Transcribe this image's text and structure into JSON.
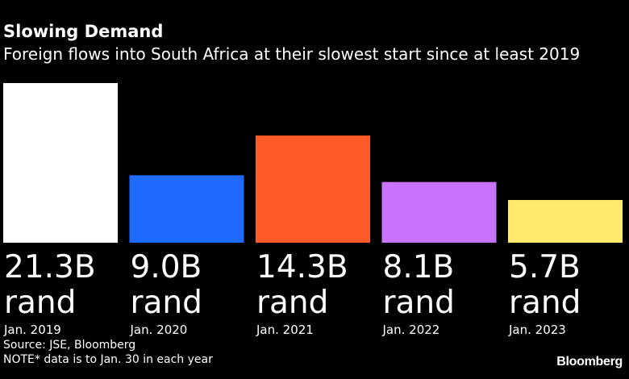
{
  "chart_data": {
    "type": "bar",
    "title": "Slowing Demand",
    "subtitle": "Foreign flows into South Africa at their slowest start since at least 2019",
    "categories": [
      "Jan. 2019",
      "Jan. 2020",
      "Jan. 2021",
      "Jan. 2022",
      "Jan. 2023"
    ],
    "values": [
      21.3,
      9.0,
      14.3,
      8.1,
      5.7
    ],
    "value_labels": [
      "21.3B",
      "9.0B",
      "14.3B",
      "8.1B",
      "5.7B"
    ],
    "unit_label": "rand",
    "colors": [
      "#ffffff",
      "#1f6bff",
      "#ff5a28",
      "#c873ff",
      "#ffea6e"
    ],
    "xlabel": "",
    "ylabel": "",
    "ylim": [
      0,
      21.3
    ],
    "grid": false,
    "legend": "none"
  },
  "footer": {
    "source": "Source: JSE, Bloomberg",
    "note": "NOTE* data is to Jan. 30 in each year"
  },
  "brand": "Bloomberg"
}
